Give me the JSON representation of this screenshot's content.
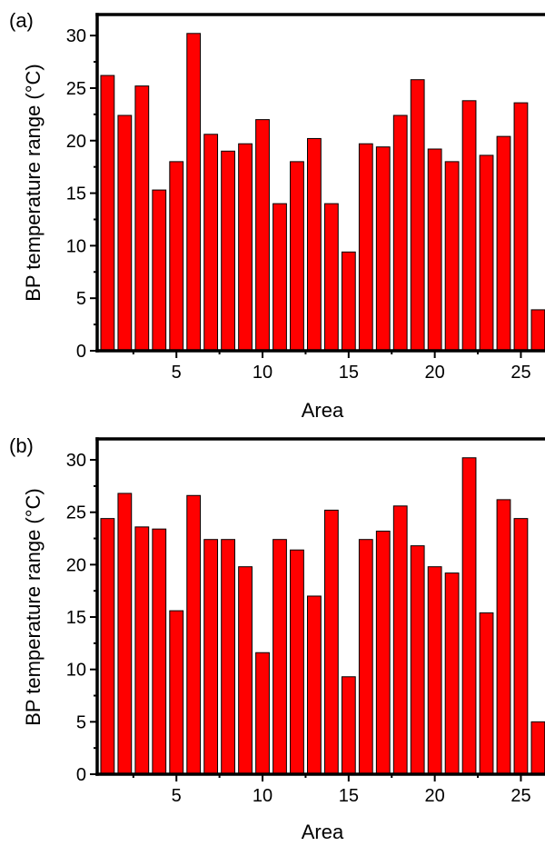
{
  "chart_data": [
    {
      "type": "bar",
      "panel_label": "(a)",
      "xlabel": "Area",
      "ylabel": "BP temperature range (°C)",
      "x": [
        1,
        2,
        3,
        4,
        5,
        6,
        7,
        8,
        9,
        10,
        11,
        12,
        13,
        14,
        15,
        16,
        17,
        18,
        19,
        20,
        21,
        22,
        23,
        24,
        25,
        26
      ],
      "values": [
        26.2,
        22.4,
        25.2,
        15.3,
        18.0,
        30.2,
        20.6,
        19.0,
        19.7,
        22.0,
        14.0,
        18.0,
        20.2,
        14.0,
        9.4,
        19.7,
        19.4,
        22.4,
        25.8,
        19.2,
        18.0,
        23.8,
        18.6,
        20.4,
        23.6,
        3.9
      ],
      "xticks": [
        5,
        10,
        15,
        20,
        25
      ],
      "xtick_labels": [
        "5",
        "10",
        "15",
        "20",
        "25"
      ],
      "yticks": [
        0,
        5,
        10,
        15,
        20,
        25,
        30
      ],
      "ytick_labels": [
        "0",
        "5",
        "10",
        "15",
        "20",
        "25",
        "30"
      ],
      "xlim": [
        0.4,
        26.4
      ],
      "ylim": [
        0,
        32
      ],
      "bar_color": "#ff0000",
      "grid": false
    },
    {
      "type": "bar",
      "panel_label": "(b)",
      "xlabel": "Area",
      "ylabel": "BP temperature range (°C)",
      "x": [
        1,
        2,
        3,
        4,
        5,
        6,
        7,
        8,
        9,
        10,
        11,
        12,
        13,
        14,
        15,
        16,
        17,
        18,
        19,
        20,
        21,
        22,
        23,
        24,
        25,
        26
      ],
      "values": [
        24.4,
        26.8,
        23.6,
        23.4,
        15.6,
        26.6,
        22.4,
        22.4,
        19.8,
        11.6,
        22.4,
        21.4,
        17.0,
        25.2,
        9.3,
        22.4,
        23.2,
        25.6,
        21.8,
        19.8,
        19.2,
        30.2,
        15.4,
        26.2,
        24.4,
        5.0
      ],
      "xticks": [
        5,
        10,
        15,
        20,
        25
      ],
      "xtick_labels": [
        "5",
        "10",
        "15",
        "20",
        "25"
      ],
      "yticks": [
        0,
        5,
        10,
        15,
        20,
        25,
        30
      ],
      "ytick_labels": [
        "0",
        "5",
        "10",
        "15",
        "20",
        "25",
        "30"
      ],
      "xlim": [
        0.4,
        26.4
      ],
      "ylim": [
        0,
        32
      ],
      "bar_color": "#ff0000",
      "grid": false
    }
  ]
}
